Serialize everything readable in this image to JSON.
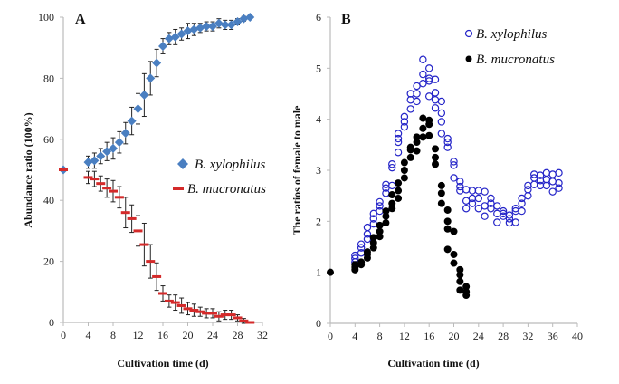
{
  "chart_data": [
    {
      "type": "line",
      "panel_label": "A",
      "title": "",
      "xlabel": "Cultivation time (d)",
      "ylabel": "Abundance ratio (100%)",
      "xlim": [
        0,
        32
      ],
      "ylim": [
        0,
        100
      ],
      "xticks": [
        "0",
        "4",
        "8",
        "12",
        "16",
        "20",
        "24",
        "28",
        "32"
      ],
      "yticks": [
        "0",
        "20",
        "40",
        "60",
        "80",
        "100"
      ],
      "grid": false,
      "legend_position": "center-right",
      "x": [
        0,
        4,
        5,
        6,
        7,
        8,
        9,
        10,
        11,
        12,
        13,
        14,
        15,
        16,
        17,
        18,
        19,
        20,
        21,
        22,
        23,
        24,
        25,
        26,
        27,
        28,
        29,
        30
      ],
      "series": [
        {
          "name": "B. xylophilus",
          "marker": "diamond",
          "color": "#4a7fc1",
          "values": [
            50,
            52.5,
            53,
            54.5,
            56,
            57,
            59,
            62,
            66,
            70,
            74.5,
            80,
            85,
            90.5,
            93,
            93.5,
            94.5,
            95.5,
            96,
            96.5,
            97,
            97,
            98,
            97.5,
            97.5,
            98.5,
            99.5,
            100
          ],
          "error": [
            0,
            2,
            2.5,
            2.5,
            3,
            3.5,
            3.5,
            3.5,
            4.5,
            5,
            7,
            5.5,
            4.5,
            2.5,
            2,
            2.5,
            2,
            2.5,
            2,
            1.5,
            1.5,
            1.5,
            1.5,
            1.5,
            1.5,
            1,
            0.8,
            0.5
          ]
        },
        {
          "name": "B. mucronatus",
          "marker": "dash",
          "color": "#d42a2a",
          "values": [
            50,
            47.5,
            47,
            45.5,
            44,
            43,
            41,
            36,
            34,
            30,
            25.5,
            20,
            15,
            9.5,
            7,
            6.5,
            5.5,
            4.5,
            4,
            3.5,
            3,
            3,
            2,
            2.5,
            2.5,
            1.5,
            0.5,
            0
          ],
          "error": [
            0,
            2,
            2.5,
            2.5,
            3,
            3.5,
            3.5,
            5,
            4.5,
            5,
            7,
            5.5,
            4.5,
            2.5,
            2,
            2.5,
            2.5,
            2,
            2,
            1.5,
            1.5,
            1.5,
            1.5,
            1.5,
            1.5,
            1,
            0.8,
            0.3
          ]
        }
      ]
    },
    {
      "type": "scatter",
      "panel_label": "B",
      "title": "",
      "xlabel": "Cultivation time (d)",
      "ylabel": "The ratios of female to male",
      "xlim": [
        0,
        40
      ],
      "ylim": [
        0,
        6
      ],
      "xticks": [
        "0",
        "4",
        "8",
        "12",
        "16",
        "20",
        "24",
        "28",
        "32",
        "36",
        "40"
      ],
      "yticks": [
        "0",
        "1",
        "2",
        "3",
        "4",
        "5",
        "6"
      ],
      "grid": false,
      "legend_position": "top-right",
      "series": [
        {
          "name": "B. xylophilus",
          "marker": "open-circle",
          "color": "#2424c8",
          "points": [
            [
              4,
              1.2
            ],
            [
              4,
              1.27
            ],
            [
              4,
              1.33
            ],
            [
              5,
              1.38
            ],
            [
              5,
              1.48
            ],
            [
              5,
              1.55
            ],
            [
              6,
              1.65
            ],
            [
              6,
              1.75
            ],
            [
              6,
              1.88
            ],
            [
              7,
              1.95
            ],
            [
              7,
              2.05
            ],
            [
              7,
              2.15
            ],
            [
              8,
              2.2
            ],
            [
              8,
              2.3
            ],
            [
              8,
              2.38
            ],
            [
              9,
              2.55
            ],
            [
              9,
              2.65
            ],
            [
              9,
              2.72
            ],
            [
              10,
              2.7
            ],
            [
              10,
              3.05
            ],
            [
              10,
              3.12
            ],
            [
              11,
              3.35
            ],
            [
              11,
              3.55
            ],
            [
              11,
              3.62
            ],
            [
              11,
              3.72
            ],
            [
              12,
              3.85
            ],
            [
              12,
              3.95
            ],
            [
              12,
              4.05
            ],
            [
              13,
              4.2
            ],
            [
              13,
              4.38
            ],
            [
              13,
              4.5
            ],
            [
              14,
              4.35
            ],
            [
              14,
              4.5
            ],
            [
              14,
              4.65
            ],
            [
              15,
              4.7
            ],
            [
              15,
              4.88
            ],
            [
              15,
              5.17
            ],
            [
              16,
              4.45
            ],
            [
              16,
              4.75
            ],
            [
              16,
              4.8
            ],
            [
              16,
              5.0
            ],
            [
              17,
              4.22
            ],
            [
              17,
              4.38
            ],
            [
              17,
              4.52
            ],
            [
              17,
              4.78
            ],
            [
              18,
              3.72
            ],
            [
              18,
              3.95
            ],
            [
              18,
              4.12
            ],
            [
              18,
              4.35
            ],
            [
              19,
              3.45
            ],
            [
              19,
              3.55
            ],
            [
              19,
              3.62
            ],
            [
              20,
              3.1
            ],
            [
              20,
              3.17
            ],
            [
              20,
              2.85
            ],
            [
              21,
              2.78
            ],
            [
              21,
              2.68
            ],
            [
              21,
              2.6
            ],
            [
              22,
              2.25
            ],
            [
              22,
              2.4
            ],
            [
              22,
              2.62
            ],
            [
              23,
              2.35
            ],
            [
              23,
              2.45
            ],
            [
              23,
              2.6
            ],
            [
              24,
              2.25
            ],
            [
              24,
              2.45
            ],
            [
              24,
              2.6
            ],
            [
              25,
              2.1
            ],
            [
              25,
              2.3
            ],
            [
              25,
              2.58
            ],
            [
              26,
              2.25
            ],
            [
              26,
              2.35
            ],
            [
              26,
              2.45
            ],
            [
              27,
              1.98
            ],
            [
              27,
              2.15
            ],
            [
              27,
              2.3
            ],
            [
              28,
              2.1
            ],
            [
              28,
              2.2
            ],
            [
              28,
              2.15
            ],
            [
              29,
              1.97
            ],
            [
              29,
              2.05
            ],
            [
              29,
              2.12
            ],
            [
              30,
              1.98
            ],
            [
              30,
              2.2
            ],
            [
              30,
              2.25
            ],
            [
              31,
              2.2
            ],
            [
              31,
              2.35
            ],
            [
              31,
              2.45
            ],
            [
              32,
              2.5
            ],
            [
              32,
              2.62
            ],
            [
              32,
              2.7
            ],
            [
              33,
              2.72
            ],
            [
              33,
              2.85
            ],
            [
              33,
              2.92
            ],
            [
              34,
              2.7
            ],
            [
              34,
              2.8
            ],
            [
              34,
              2.9
            ],
            [
              35,
              2.7
            ],
            [
              35,
              2.82
            ],
            [
              35,
              2.95
            ],
            [
              36,
              2.58
            ],
            [
              36,
              2.78
            ],
            [
              36,
              2.92
            ],
            [
              37,
              2.65
            ],
            [
              37,
              2.75
            ],
            [
              37,
              2.95
            ]
          ]
        },
        {
          "name": "B. mucronatus",
          "marker": "filled-circle",
          "color": "#000000",
          "points": [
            [
              0,
              1.0
            ],
            [
              4,
              1.05
            ],
            [
              4,
              1.1
            ],
            [
              4,
              1.15
            ],
            [
              5,
              1.15
            ],
            [
              5,
              1.2
            ],
            [
              6,
              1.28
            ],
            [
              6,
              1.35
            ],
            [
              6,
              1.4
            ],
            [
              7,
              1.48
            ],
            [
              7,
              1.58
            ],
            [
              7,
              1.68
            ],
            [
              8,
              1.7
            ],
            [
              8,
              1.8
            ],
            [
              8,
              1.92
            ],
            [
              9,
              1.97
            ],
            [
              9,
              2.1
            ],
            [
              9,
              2.2
            ],
            [
              10,
              2.25
            ],
            [
              10,
              2.35
            ],
            [
              10,
              2.52
            ],
            [
              11,
              2.45
            ],
            [
              11,
              2.6
            ],
            [
              11,
              2.75
            ],
            [
              12,
              2.85
            ],
            [
              12,
              3.0
            ],
            [
              12,
              3.15
            ],
            [
              13,
              3.25
            ],
            [
              13,
              3.4
            ],
            [
              13,
              3.45
            ],
            [
              14,
              3.38
            ],
            [
              14,
              3.55
            ],
            [
              14,
              3.65
            ],
            [
              15,
              3.65
            ],
            [
              15,
              3.82
            ],
            [
              15,
              4.02
            ],
            [
              16,
              3.68
            ],
            [
              16,
              3.9
            ],
            [
              16,
              3.98
            ],
            [
              17,
              3.12
            ],
            [
              17,
              3.25
            ],
            [
              17,
              3.42
            ],
            [
              18,
              2.35
            ],
            [
              18,
              2.55
            ],
            [
              18,
              2.7
            ],
            [
              19,
              1.85
            ],
            [
              19,
              2.0
            ],
            [
              19,
              2.22
            ],
            [
              19,
              1.45
            ],
            [
              20,
              1.18
            ],
            [
              20,
              1.35
            ],
            [
              20,
              1.8
            ],
            [
              21,
              0.65
            ],
            [
              21,
              0.82
            ],
            [
              21,
              0.95
            ],
            [
              21,
              1.05
            ],
            [
              22,
              0.55
            ],
            [
              22,
              0.62
            ],
            [
              22,
              0.72
            ]
          ]
        }
      ]
    }
  ]
}
